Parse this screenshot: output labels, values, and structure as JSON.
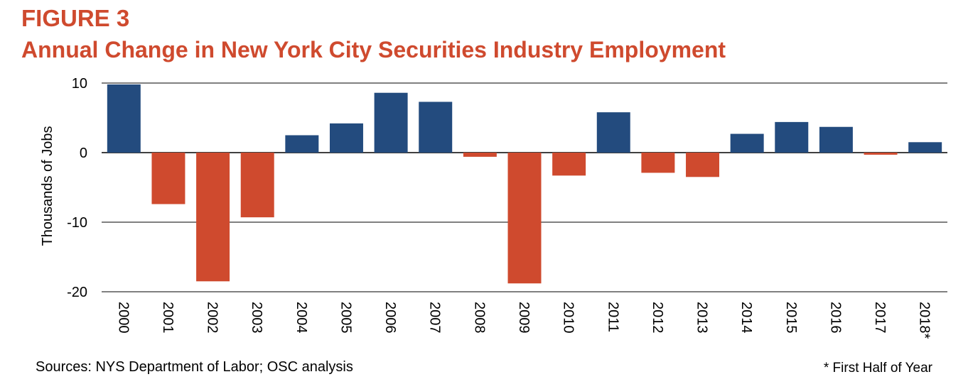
{
  "figure": {
    "label": "FIGURE 3",
    "title": "Annual Change in New York City Securities Industry Employment"
  },
  "footer": {
    "source": "Sources: NYS Department of Labor; OSC analysis",
    "note": "* First Half of Year"
  },
  "colors": {
    "positive": "#234b7e",
    "negative": "#cf4a2e",
    "title": "#cf4a2e",
    "grid": "#000000"
  },
  "chart_data": {
    "type": "bar",
    "title": "Annual Change in New York City Securities Industry Employment",
    "xlabel": "",
    "ylabel": "Thousands of Jobs",
    "ylim": [
      -20,
      10
    ],
    "yticks": [
      10,
      0,
      -10,
      -20
    ],
    "grid": true,
    "categories": [
      "2000",
      "2001",
      "2002",
      "2003",
      "2004",
      "2005",
      "2006",
      "2007",
      "2008",
      "2009",
      "2010",
      "2011",
      "2012",
      "2013",
      "2014",
      "2015",
      "2016",
      "2017",
      "2018*"
    ],
    "values": [
      9.8,
      -7.4,
      -18.5,
      -9.3,
      2.5,
      4.2,
      8.6,
      7.3,
      -0.6,
      -18.8,
      -3.3,
      5.8,
      -2.9,
      -3.5,
      2.7,
      4.4,
      3.7,
      -0.3,
      1.5
    ]
  }
}
